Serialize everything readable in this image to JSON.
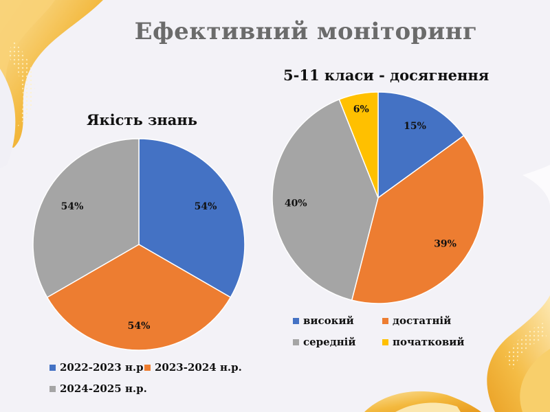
{
  "page": {
    "title": "Ефективний моніторинг"
  },
  "colors": {
    "blue": "#4472c4",
    "orange": "#ed7d31",
    "gray": "#a5a5a5",
    "yellow": "#ffc000"
  },
  "chart_data": [
    {
      "type": "pie",
      "title": "Якість знань",
      "categories": [
        "2022-2023 н.р.",
        "2023-2024 н.р.",
        "2024-2025 н.р."
      ],
      "values": [
        54,
        54,
        54
      ],
      "labels": [
        "54%",
        "54%",
        "54%"
      ],
      "legend": "bottom"
    },
    {
      "type": "pie",
      "title": "5-11 класи - досягнення",
      "categories": [
        "високий",
        "достатній",
        "середній",
        "початковий"
      ],
      "values": [
        15,
        39,
        40,
        6
      ],
      "labels": [
        "15%",
        "39%",
        "40%",
        "6%"
      ],
      "legend": "bottom"
    }
  ]
}
